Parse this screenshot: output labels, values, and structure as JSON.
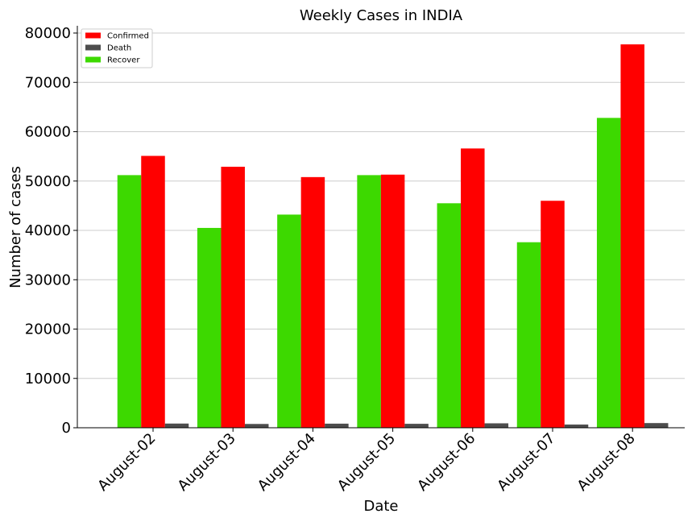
{
  "chart_data": {
    "type": "bar",
    "title": "Weekly Cases in INDIA",
    "xlabel": "Date",
    "ylabel": "Number of cases",
    "categories": [
      "August-02",
      "August-03",
      "August-04",
      "August-05",
      "August-06",
      "August-07",
      "August-08"
    ],
    "series": [
      {
        "name": "Recover",
        "color": "#3dd900",
        "values": [
          51200,
          40500,
          43200,
          51200,
          45500,
          37600,
          62800
        ]
      },
      {
        "name": "Confirmed",
        "color": "#ff0000",
        "values": [
          55100,
          52900,
          50800,
          51300,
          56600,
          46000,
          77700
        ]
      },
      {
        "name": "Death",
        "color": "#4d4d4d",
        "values": [
          850,
          770,
          830,
          800,
          900,
          650,
          950
        ]
      }
    ],
    "legend_order": [
      "Confirmed",
      "Death",
      "Recover"
    ],
    "yticks": [
      0,
      10000,
      20000,
      30000,
      40000,
      50000,
      60000,
      70000,
      80000
    ],
    "ylim": [
      0,
      81500
    ],
    "grid": "horizontal",
    "legend_position": "top-left"
  }
}
